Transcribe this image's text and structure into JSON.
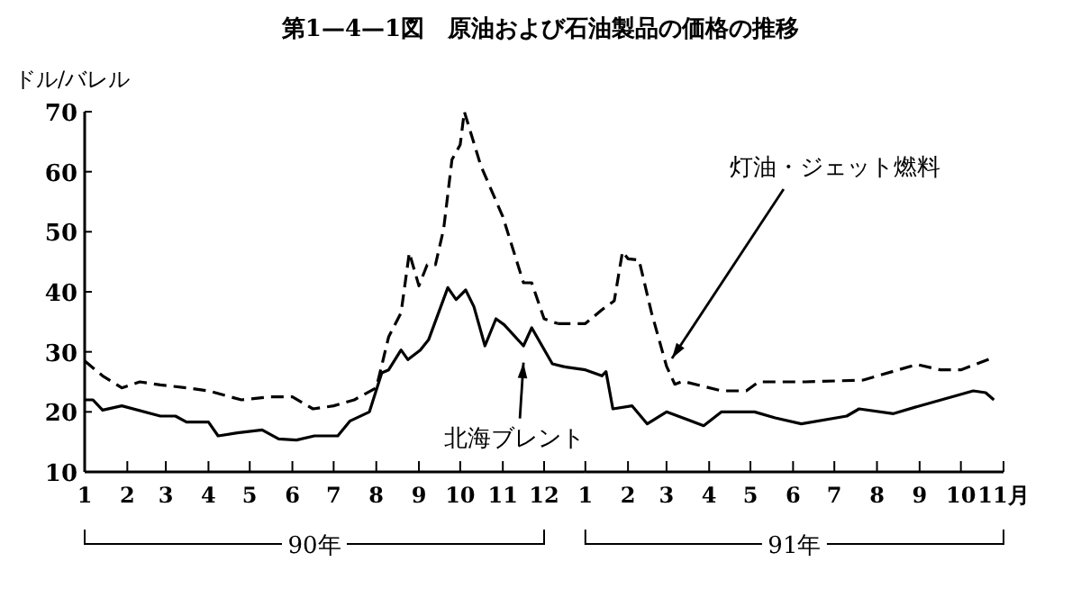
{
  "chart_data": [
    {
      "type": "line",
      "title": "第1—4—1図　原油および石油製品の価格の推移",
      "ylabel": "ドル/バレル",
      "xlim": [
        "--01-01",
        "--12-31"
      ],
      "ylim": [
        10,
        70
      ],
      "yticks": [
        10,
        20,
        30,
        40,
        50,
        60,
        70
      ],
      "xticks": [
        {
          "value": "--01-01",
          "label": "1"
        },
        {
          "value": "--02-01",
          "label": "2"
        },
        {
          "value": "--03-01",
          "label": "3"
        },
        {
          "value": "--04-01",
          "label": "4"
        },
        {
          "value": "--05-01",
          "label": "5"
        },
        {
          "value": "--06-01",
          "label": "6"
        },
        {
          "value": "--07-01",
          "label": "7"
        },
        {
          "value": "--08-01",
          "label": "8"
        },
        {
          "value": "--09-01",
          "label": "9"
        },
        {
          "value": "--10-01",
          "label": "10"
        },
        {
          "value": "--11-01",
          "label": "11"
        },
        {
          "value": "--12-01",
          "label": "12"
        }
      ],
      "grid": false,
      "marker": "none",
      "series": [
        {
          "color": "#000000",
          "line_style": "dashed",
          "x": [
            "--01-01",
            "--01-14",
            "--01-28",
            "--02-10",
            "--02-25",
            "--03-16",
            "--04-01",
            "--04-25",
            "--05-16",
            "--06-01",
            "--06-16",
            "--07-01",
            "--07-16",
            "--08-01",
            "--08-10",
            "--08-19",
            "--08-25",
            "--09-01",
            "--09-07",
            "--09-13",
            "--09-19",
            "--09-25",
            "--10-01",
            "--10-04",
            "--10-16",
            "--11-01",
            "--11-16",
            "--11-22",
            "--12-01",
            "--12-11"
          ],
          "values": [
            28.5,
            26,
            24,
            25,
            24.5,
            24,
            23.5,
            22,
            22.5,
            22.5,
            20.5,
            21,
            22,
            24,
            32.5,
            36.5,
            46.5,
            41,
            44.5,
            44.5,
            50.5,
            62,
            64.5,
            70,
            61,
            52.5,
            41.5,
            41.5,
            35.5,
            34.7
          ]
        },
        {
          "color": "#000000",
          "line_style": "solid",
          "x": [
            "--01-01",
            "--01-07",
            "--01-14",
            "--01-28",
            "--02-25",
            "--03-08",
            "--03-16",
            "--04-01",
            "--04-08",
            "--04-22",
            "--05-10",
            "--05-22",
            "--06-04",
            "--06-17",
            "--07-04",
            "--07-13",
            "--07-27",
            "--08-05",
            "--08-10",
            "--08-19",
            "--08-24",
            "--09-02",
            "--09-08",
            "--09-22",
            "--09-28",
            "--10-05",
            "--10-11",
            "--10-19",
            "--10-27",
            "--11-02",
            "--11-16",
            "--11-22",
            "--12-07",
            "--12-16"
          ],
          "values": [
            22,
            22,
            20.3,
            21,
            19.3,
            19.3,
            18.3,
            18.3,
            16,
            16.5,
            17,
            15.5,
            15.3,
            16,
            16,
            18.5,
            20,
            26.5,
            27,
            30.3,
            28.7,
            30.3,
            32,
            40.7,
            38.7,
            40.3,
            37.5,
            31,
            35.5,
            34.5,
            31,
            34,
            28,
            27.5
          ]
        }
      ],
      "annotations": [
        {
          "text": "北海ブレント",
          "x": "--11-16",
          "y": 30
        },
        "90年"
      ]
    },
    {
      "type": "line",
      "tick_labels": "x",
      "xlim": [
        "--01-01",
        "--11-01"
      ],
      "ylim": [
        10,
        70
      ],
      "xticks": [
        {
          "value": "--01-01",
          "label": "1"
        },
        {
          "value": "--02-01",
          "label": "2"
        },
        {
          "value": "--03-01",
          "label": "3"
        },
        {
          "value": "--04-01",
          "label": "4"
        },
        {
          "value": "--05-01",
          "label": "5"
        },
        {
          "value": "--06-01",
          "label": "6"
        },
        {
          "value": "--07-01",
          "label": "7"
        },
        {
          "value": "--08-01",
          "label": "8"
        },
        {
          "value": "--09-01",
          "label": "9"
        },
        {
          "value": "--10-01",
          "label": "10"
        },
        {
          "value": "--11-01",
          "label": "11月"
        }
      ],
      "grid": false,
      "marker": "none",
      "series": [
        {
          "color": "#000000",
          "line_style": "dashed",
          "x": [
            "--01-01",
            "--01-13",
            "--01-22",
            "--01-28",
            "--02-01",
            "--02-09",
            "--02-18",
            "--03-01",
            "--03-07",
            "--03-13",
            "--04-10",
            "--04-28",
            "--05-07",
            "--06-10",
            "--07-22",
            "--08-30",
            "--09-16",
            "--10-01",
            "--10-22"
          ],
          "values": [
            34.7,
            37,
            38.5,
            46.7,
            45.5,
            45.3,
            36.6,
            27.6,
            24.6,
            25.1,
            23.5,
            23.5,
            25,
            25,
            25.3,
            27.9,
            27,
            27,
            28.8
          ]
        },
        {
          "color": "#000000",
          "line_style": "solid",
          "x": [
            "--01-01",
            "--01-13",
            "--01-16",
            "--01-21",
            "--02-04",
            "--02-15",
            "--03-01",
            "--03-28",
            "--04-10",
            "--05-04",
            "--05-19",
            "--06-07",
            "--07-10",
            "--07-19",
            "--08-13",
            "--09-01",
            "--10-10",
            "--10-19",
            "--10-25"
          ],
          "values": [
            27,
            26,
            26.7,
            20.5,
            21,
            18,
            20,
            17.7,
            20,
            20,
            19,
            18,
            19.3,
            20.5,
            19.7,
            21,
            23.5,
            23.2,
            22
          ]
        }
      ],
      "annotations": [
        {
          "text": "灯油・ジェット燃料",
          "x": "--03-01",
          "y": 28
        },
        "91年"
      ]
    }
  ]
}
